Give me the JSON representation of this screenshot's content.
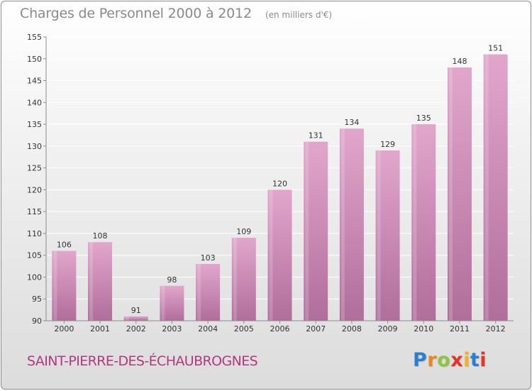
{
  "header": {
    "title": "Charges de Personnel 2000 à 2012",
    "subtitle": "(en milliers d'€)"
  },
  "footer": {
    "commune": "SAINT-PIERRE-DES-ÉCHAUBROGNES",
    "brand": {
      "letters": [
        "P",
        "r",
        "o",
        "x",
        "i",
        "t",
        "i"
      ],
      "colors": [
        "#2a7fd0",
        "#e8871e",
        "#8cc63f",
        "#e6332a",
        "#f3b11d",
        "#2a7fd0",
        "#e6332a"
      ]
    }
  },
  "colors": {
    "bar_light": "#e2a6cb",
    "bar_dark": "#b06e9b",
    "axis": "#8c8c8c",
    "grid": "#ffffff",
    "label": "#333333"
  },
  "chart_data": {
    "type": "bar",
    "categories": [
      "2000",
      "2001",
      "2002",
      "2003",
      "2004",
      "2005",
      "2006",
      "2007",
      "2008",
      "2009",
      "2010",
      "2011",
      "2012"
    ],
    "values": [
      106,
      108,
      91,
      98,
      103,
      109,
      120,
      131,
      134,
      129,
      135,
      148,
      151
    ],
    "ylim": [
      90,
      155
    ],
    "yticks": [
      90,
      95,
      100,
      105,
      110,
      115,
      120,
      125,
      130,
      135,
      140,
      145,
      150,
      155
    ],
    "grid": true,
    "xlabel": "",
    "ylabel": ""
  }
}
